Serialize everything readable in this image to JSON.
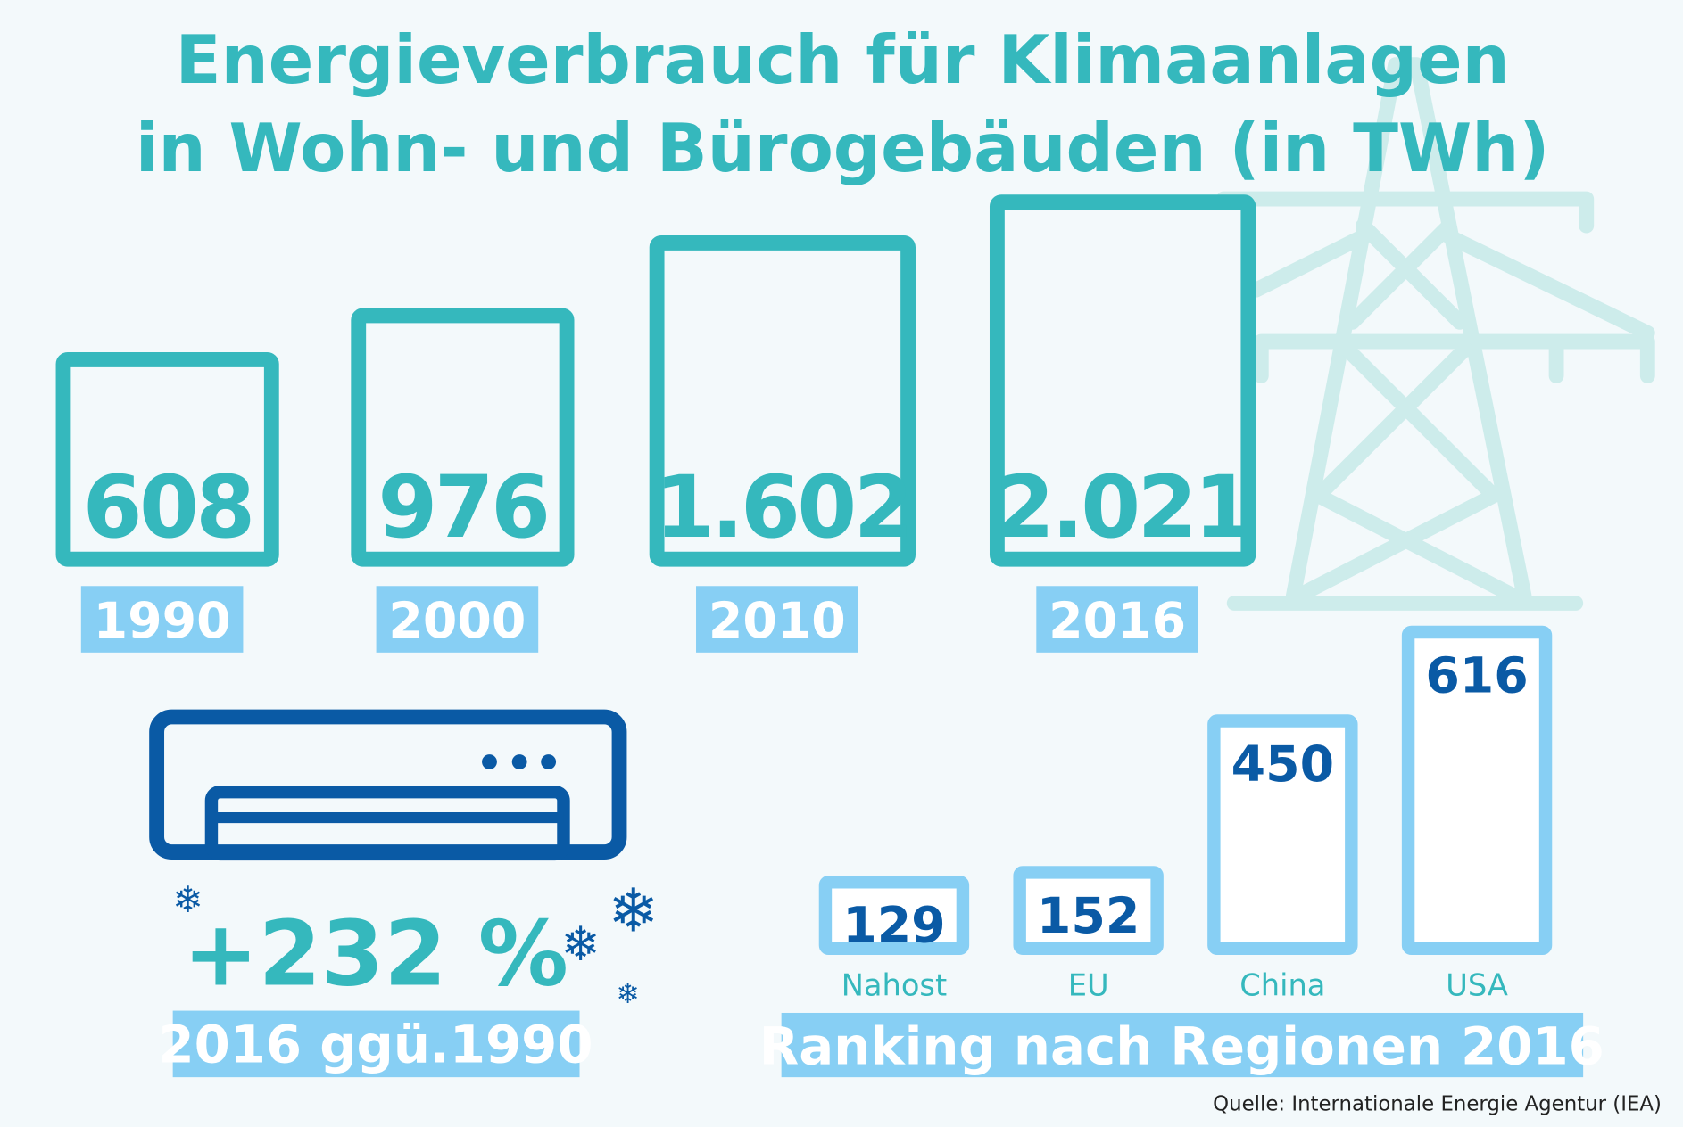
{
  "title": {
    "line1": "Energieverbrauch für Klimaanlagen",
    "line2": "in Wohn- und Bürogebäuden (in TWh)"
  },
  "colors": {
    "teal": "#35b8bd",
    "light_blue": "#87cff4",
    "dark_blue": "#0a5aa5",
    "pylon": "#cdeceb",
    "background": "#f3f9fb"
  },
  "growth": {
    "value": "+232 %",
    "label": "2016 ggü.1990"
  },
  "source": "Quelle: Internationale Energie Agentur (IEA)",
  "chart_data": [
    {
      "type": "bar",
      "title": "Energieverbrauch für Klimaanlagen in Wohn- und Bürogebäuden (in TWh)",
      "categories": [
        "1990",
        "2000",
        "2010",
        "2016"
      ],
      "values": [
        608,
        976,
        1602,
        2021
      ],
      "value_labels": [
        "608",
        "976",
        "1.602",
        "2.021"
      ],
      "ylabel": "TWh"
    },
    {
      "type": "bar",
      "title": "Ranking nach Regionen 2016",
      "categories": [
        "Nahost",
        "EU",
        "China",
        "USA"
      ],
      "values": [
        129,
        152,
        450,
        616
      ],
      "value_labels": [
        "129",
        "152",
        "450",
        "616"
      ],
      "ylabel": "TWh"
    }
  ]
}
